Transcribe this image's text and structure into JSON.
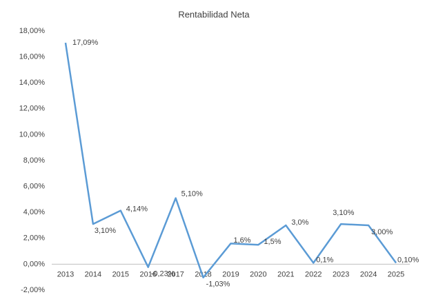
{
  "chart_data": {
    "type": "line",
    "title": "Rentabilidad Neta",
    "categories": [
      "2013",
      "2014",
      "2015",
      "2016",
      "2017",
      "2018",
      "2019",
      "2020",
      "2021",
      "2022",
      "2023",
      "2024",
      "2025"
    ],
    "series": [
      {
        "name": "Rentabilidad Neta",
        "color": "#5b9bd5",
        "values": [
          17.09,
          3.1,
          4.14,
          -0.23,
          5.1,
          -1.03,
          1.6,
          1.5,
          3.0,
          0.1,
          3.1,
          3.0,
          0.1
        ],
        "value_labels": [
          "17,09%",
          "3,10%",
          "4,14%",
          "-0,23%",
          "5,10%",
          "-1,03%",
          "1,6%",
          "1,5%",
          "3,0%",
          "0,1%",
          "3,10%",
          "3,00%",
          "0,10%"
        ]
      }
    ],
    "ylim": [
      -2,
      18
    ],
    "yticks": [
      {
        "value": -2,
        "label": "-2,00%"
      },
      {
        "value": 0,
        "label": "0,00%"
      },
      {
        "value": 2,
        "label": "2,00%"
      },
      {
        "value": 4,
        "label": "4,00%"
      },
      {
        "value": 6,
        "label": "6,00%"
      },
      {
        "value": 8,
        "label": "8,00%"
      },
      {
        "value": 10,
        "label": "10,00%"
      },
      {
        "value": 12,
        "label": "12,00%"
      },
      {
        "value": 14,
        "label": "14,00%"
      },
      {
        "value": 16,
        "label": "16,00%"
      },
      {
        "value": 18,
        "label": "18,00%"
      }
    ],
    "grid": false
  }
}
